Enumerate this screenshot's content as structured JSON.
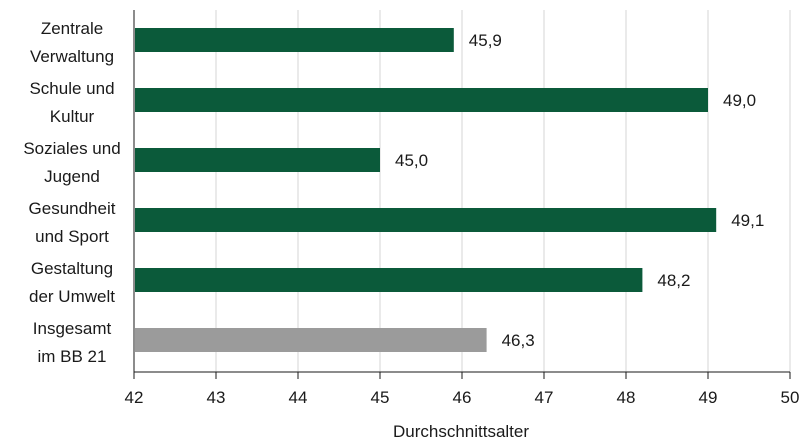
{
  "chart_data": {
    "type": "bar",
    "orientation": "horizontal",
    "categories": [
      [
        "Zentrale",
        "Verwaltung"
      ],
      [
        "Schule und",
        "Kultur"
      ],
      [
        "Soziales und",
        "Jugend"
      ],
      [
        "Gesundheit",
        "und Sport"
      ],
      [
        "Gestaltung",
        "der Umwelt"
      ],
      [
        "Insgesamt",
        "im BB 21"
      ]
    ],
    "values": [
      45.9,
      49.0,
      45.0,
      49.1,
      48.2,
      46.3
    ],
    "value_labels": [
      "45,9",
      "49,0",
      "45,0",
      "49,1",
      "48,2",
      "46,3"
    ],
    "bar_colors": [
      "#0b5a3a",
      "#0b5a3a",
      "#0b5a3a",
      "#0b5a3a",
      "#0b5a3a",
      "#9b9b9b"
    ],
    "xlabel": "Durchschnittsalter",
    "xlim": [
      42,
      50
    ],
    "xticks": [
      "42",
      "43",
      "44",
      "45",
      "46",
      "47",
      "48",
      "49",
      "50"
    ],
    "grid": "vertical",
    "axis_color": "#1a1a1a",
    "grid_color": "#d6d6d6"
  }
}
